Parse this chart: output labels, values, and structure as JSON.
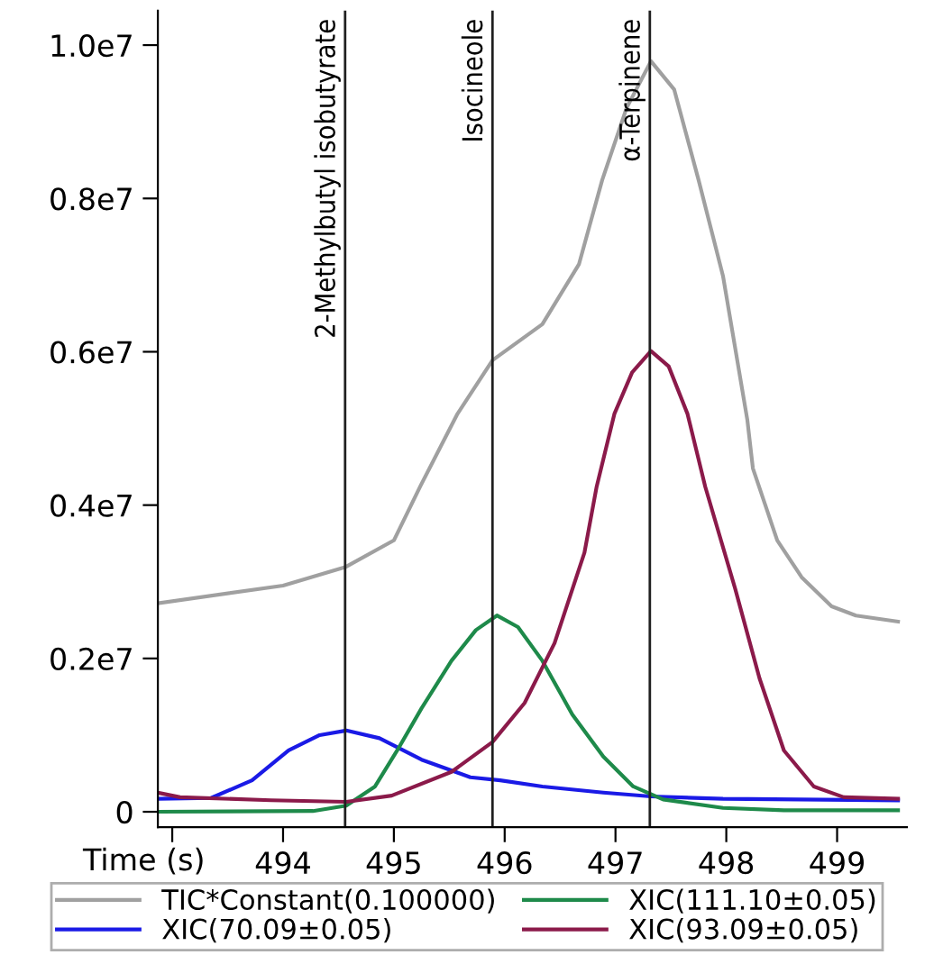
{
  "chart_data": {
    "type": "line",
    "xlabel": "Time (s)",
    "xlim": [
      492.87,
      499.63
    ],
    "ylim": [
      -200000,
      10450000
    ],
    "xticks": [
      {
        "value": 493,
        "label": null
      },
      494,
      495,
      496,
      497,
      498,
      499
    ],
    "yticks": [
      {
        "value": 0,
        "label": "0"
      },
      {
        "value": 2000000,
        "label": "0.2e7"
      },
      {
        "value": 4000000,
        "label": "0.4e7"
      },
      {
        "value": 6000000,
        "label": "0.6e7"
      },
      {
        "value": 8000000,
        "label": "0.8e7"
      },
      {
        "value": 10000000,
        "label": "1.0e7"
      }
    ],
    "grid": false,
    "legend": "bottom",
    "line_style": "solid",
    "ref_lines": [
      {
        "axis": "x",
        "value": 494.56,
        "label": "2-Methylbutyl isobutyrate",
        "color": "#202020"
      },
      {
        "axis": "x",
        "value": 495.89,
        "label": "Isocineole",
        "color": "#202020"
      },
      {
        "axis": "x",
        "value": 497.31,
        "label": "α-Terpinene",
        "color": "#202020"
      }
    ],
    "series": [
      {
        "name": "TIC*Constant(0.100000)",
        "color": "#a0a0a0",
        "x": [
          492.87,
          494.0,
          494.56,
          495.0,
          495.24,
          495.57,
          495.89,
          496.34,
          496.67,
          496.88,
          497.1,
          497.32,
          497.53,
          497.75,
          497.97,
          498.19,
          498.24,
          498.46,
          498.68,
          498.95,
          499.17,
          499.55
        ],
        "values": [
          2720000,
          2950000,
          3190000,
          3540000,
          4250000,
          5180000,
          5890000,
          6360000,
          7140000,
          8240000,
          9180000,
          9790000,
          9420000,
          8240000,
          6990000,
          5110000,
          4480000,
          3540000,
          3060000,
          2680000,
          2560000,
          2480000
        ]
      },
      {
        "name": "XIC(70.09±0.05)",
        "color": "#1a1ae6",
        "x": [
          492.87,
          493.35,
          493.72,
          494.05,
          494.33,
          494.57,
          494.87,
          495.25,
          495.69,
          495.96,
          496.34,
          496.89,
          497.32,
          497.97,
          499.55
        ],
        "values": [
          170000,
          180000,
          410000,
          800000,
          1000000,
          1060000,
          960000,
          680000,
          450000,
          410000,
          330000,
          250000,
          200000,
          170000,
          150000
        ]
      },
      {
        "name": "XIC(111.10±0.05)",
        "color": "#1e8a4a",
        "x": [
          492.87,
          494.27,
          494.57,
          494.83,
          495.03,
          495.25,
          495.52,
          495.74,
          495.93,
          496.12,
          496.34,
          496.61,
          496.89,
          497.16,
          497.43,
          497.97,
          498.52,
          499.55
        ],
        "values": [
          0,
          10000,
          80000,
          330000,
          800000,
          1350000,
          1970000,
          2370000,
          2560000,
          2410000,
          1970000,
          1270000,
          720000,
          330000,
          160000,
          50000,
          20000,
          20000
        ]
      },
      {
        "name": "XIC(93.09±0.05)",
        "color": "#8b1a4a",
        "x": [
          492.87,
          493.07,
          493.89,
          494.57,
          494.98,
          495.52,
          495.89,
          496.18,
          496.45,
          496.72,
          496.83,
          496.99,
          497.15,
          497.32,
          497.48,
          497.65,
          497.81,
          498.08,
          498.3,
          498.52,
          498.79,
          499.06,
          499.55
        ],
        "values": [
          250000,
          190000,
          150000,
          130000,
          210000,
          520000,
          910000,
          1420000,
          2200000,
          3380000,
          4240000,
          5190000,
          5730000,
          6010000,
          5810000,
          5190000,
          4240000,
          2910000,
          1740000,
          800000,
          330000,
          190000,
          170000
        ]
      }
    ]
  }
}
